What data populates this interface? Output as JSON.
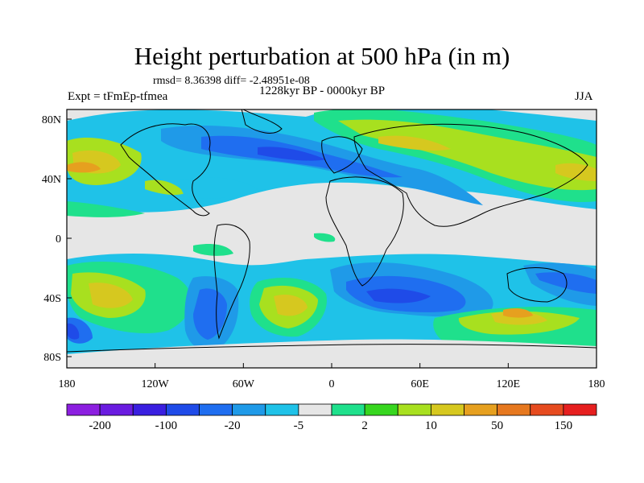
{
  "title": "Height perturbation at 500 hPa (in m)",
  "stats_text": "rmsd= 8.36398 diff= -2.48951e-08",
  "period_text": "1228kyr BP - 0000kyr BP",
  "experiment_label": "Expt = tFmEp-tfmea",
  "season_label": "JJA",
  "lat_ticks": [
    "80N",
    "40N",
    "0",
    "40S",
    "80S"
  ],
  "lon_ticks": [
    "180",
    "120W",
    "60W",
    "0",
    "60E",
    "120E",
    "180"
  ],
  "colorbar": {
    "colors": [
      "#8c1fe0",
      "#6a1ce0",
      "#3a1fe0",
      "#1f4be8",
      "#1f6ef0",
      "#1f9ae8",
      "#1fc2e8",
      "#e6e6e6",
      "#1fe08c",
      "#37d61f",
      "#a8e01f",
      "#d6c81f",
      "#e6a01f",
      "#e6781f",
      "#e64b1f",
      "#e61f1f"
    ],
    "labels": [
      "-200",
      "-100",
      "-20",
      "-5",
      "2",
      "10",
      "50",
      "150"
    ]
  },
  "legend_colors": {
    "neutral": "#e6e6e6",
    "deep_blue": "#1f4be8",
    "blue": "#1f6ef0",
    "light_blue": "#1fc2e8",
    "mid_blue": "#1f9ae8",
    "green": "#1fe08c",
    "lime": "#a8e01f",
    "yellow": "#d6c81f",
    "orange": "#e6a01f"
  }
}
